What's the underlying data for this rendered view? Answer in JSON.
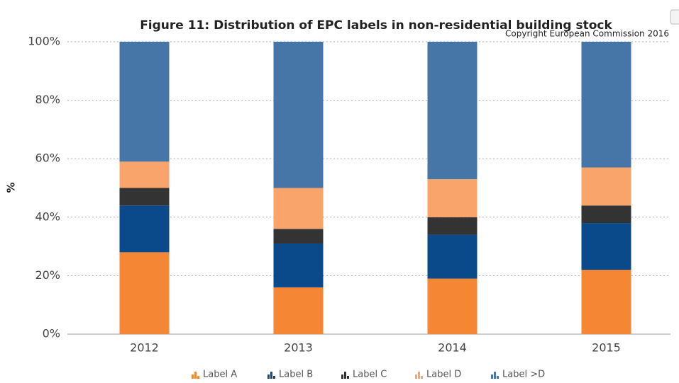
{
  "chart_data": {
    "type": "stacked_bar",
    "title": "Figure 11: Distribution of EPC labels in non-residential building stock",
    "subtitle": "Copyright European Commission 2016",
    "y_label": "%",
    "categories": [
      "2012",
      "2013",
      "2014",
      "2015"
    ],
    "series": [
      {
        "name": "Label A",
        "color": "#f58634",
        "values": [
          28,
          16,
          19,
          22
        ]
      },
      {
        "name": "Label B",
        "color": "#0b4a8a",
        "values": [
          16,
          15,
          15,
          16
        ]
      },
      {
        "name": "Label C",
        "color": "#333333",
        "values": [
          6,
          5,
          6,
          6
        ]
      },
      {
        "name": "Label D",
        "color": "#f9a46a",
        "values": [
          9,
          14,
          13,
          13
        ]
      },
      {
        "name": "Label >D",
        "color": "#4675a8",
        "values": [
          41,
          50,
          47,
          43
        ]
      }
    ],
    "ylim": [
      0,
      100
    ],
    "yticks": [
      {
        "value": 0,
        "label": "0%"
      },
      {
        "value": 20,
        "label": "20%"
      },
      {
        "value": 40,
        "label": "40%"
      },
      {
        "value": 60,
        "label": "60%"
      },
      {
        "value": 80,
        "label": "80%"
      },
      {
        "value": 100,
        "label": "100%"
      }
    ],
    "grid": true,
    "legend": "bottom"
  }
}
